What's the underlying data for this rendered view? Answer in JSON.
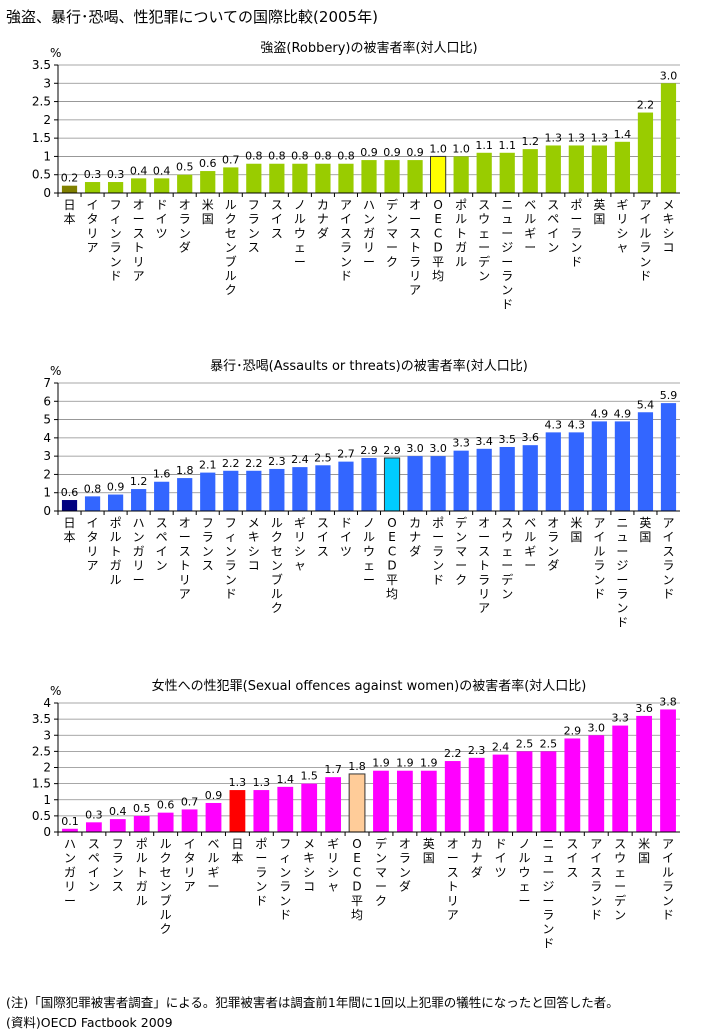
{
  "page": {
    "title": "強盗、暴行･恐喝、性犯罪についての国際比較(2005年)",
    "note": "(注)「国際犯罪被害者調査」による。犯罪被害者は調査前1年間に1回以上犯罪の犠牲になったと回答した者。",
    "source": "(資料)OECD Factbook 2009"
  },
  "colors": {
    "robbery": {
      "bar": "#99CC00",
      "japan": "#808000",
      "oecd": "#FFFF00"
    },
    "assault": {
      "bar": "#3366FF",
      "japan": "#000080",
      "oecd": "#00CCFF"
    },
    "sexual": {
      "bar": "#FF00FF",
      "japan": "#FF0000",
      "oecd": "#FFCC99"
    }
  },
  "chart_data": [
    {
      "type": "bar",
      "title": "強盗(Robbery)の被害者率(対人口比)",
      "ylabel": "%",
      "ylim": [
        0,
        3.5
      ],
      "yticks": [
        "0",
        "0.5",
        "1",
        "1.5",
        "2",
        "2.5",
        "3",
        "3.5"
      ],
      "categories": [
        "日本",
        "イタリア",
        "フィンランド",
        "オーストリア",
        "ドイツ",
        "オランダ",
        "米国",
        "ルクセンブルク",
        "フランス",
        "スイス",
        "ノルウェー",
        "カナダ",
        "アイスランド",
        "ハンガリー",
        "デンマーク",
        "オーストラリア",
        "OECD平均",
        "ポルトガル",
        "スウェーデン",
        "ニュージーランド",
        "ベルギー",
        "スペイン",
        "ポーランド",
        "英国",
        "ギリシャ",
        "アイルランド",
        "メキシコ"
      ],
      "values": [
        0.2,
        0.3,
        0.3,
        0.4,
        0.4,
        0.5,
        0.6,
        0.7,
        0.8,
        0.8,
        0.8,
        0.8,
        0.8,
        0.9,
        0.9,
        0.9,
        1.0,
        1.0,
        1.1,
        1.1,
        1.2,
        1.3,
        1.3,
        1.3,
        1.4,
        2.2,
        3.0
      ],
      "value_labels": [
        "0.2",
        "0.3",
        "0.3",
        "0.4",
        "0.4",
        "0.5",
        "0.6",
        "0.7",
        "0.8",
        "0.8",
        "0.8",
        "0.8",
        "0.8",
        "0.9",
        "0.9",
        "0.9",
        "1.0",
        "1.0",
        "1.1",
        "1.1",
        "1.2",
        "1.3",
        "1.3",
        "1.3",
        "1.4",
        "2.2",
        "3.0"
      ],
      "highlight": {
        "japan": "日本",
        "oecd": "OECD平均"
      }
    },
    {
      "type": "bar",
      "title": "暴行･恐喝(Assaults or threats)の被害者率(対人口比)",
      "ylabel": "%",
      "ylim": [
        0,
        7
      ],
      "yticks": [
        "0",
        "1",
        "2",
        "3",
        "4",
        "5",
        "6",
        "7"
      ],
      "categories": [
        "日本",
        "イタリア",
        "ポルトガル",
        "ハンガリー",
        "スペイン",
        "オーストリア",
        "フランス",
        "フィンランド",
        "メキシコ",
        "ルクセンブルク",
        "ギリシャ",
        "スイス",
        "ドイツ",
        "ノルウェー",
        "OECD平均",
        "カナダ",
        "ポーランド",
        "デンマーク",
        "オーストラリア",
        "スウェーデン",
        "ベルギー",
        "オランダ",
        "米国",
        "アイルランド",
        "ニュージーランド",
        "英国",
        "アイスランド"
      ],
      "values": [
        0.6,
        0.8,
        0.9,
        1.2,
        1.6,
        1.8,
        2.1,
        2.2,
        2.2,
        2.3,
        2.4,
        2.5,
        2.7,
        2.9,
        2.9,
        3.0,
        3.0,
        3.3,
        3.4,
        3.5,
        3.6,
        4.3,
        4.3,
        4.9,
        4.9,
        5.4,
        5.9
      ],
      "value_labels": [
        "0.6",
        "0.8",
        "0.9",
        "1.2",
        "1.6",
        "1.8",
        "2.1",
        "2.2",
        "2.2",
        "2.3",
        "2.4",
        "2.5",
        "2.7",
        "2.9",
        "2.9",
        "3.0",
        "3.0",
        "3.3",
        "3.4",
        "3.5",
        "3.6",
        "4.3",
        "4.3",
        "4.9",
        "4.9",
        "5.4",
        "5.9"
      ],
      "highlight": {
        "japan": "日本",
        "oecd": "OECD平均"
      }
    },
    {
      "type": "bar",
      "title": "女性への性犯罪(Sexual offences against women)の被害者率(対人口比)",
      "ylabel": "%",
      "ylim": [
        0,
        4
      ],
      "yticks": [
        "0",
        "0.5",
        "1",
        "1.5",
        "2",
        "2.5",
        "3",
        "3.5",
        "4"
      ],
      "categories": [
        "ハンガリー",
        "スペイン",
        "フランス",
        "ポルトガル",
        "ルクセンブルク",
        "イタリア",
        "ベルギー",
        "日本",
        "ポーランド",
        "フィンランド",
        "メキシコ",
        "ギリシャ",
        "OECD平均",
        "デンマーク",
        "オランダ",
        "英国",
        "オーストリア",
        "カナダ",
        "ドイツ",
        "ノルウェー",
        "ニュージーランド",
        "スイス",
        "アイスランド",
        "スウェーデン",
        "米国",
        "アイルランド"
      ],
      "values": [
        0.1,
        0.3,
        0.4,
        0.5,
        0.6,
        0.7,
        0.9,
        1.3,
        1.3,
        1.4,
        1.5,
        1.7,
        1.8,
        1.9,
        1.9,
        1.9,
        2.2,
        2.3,
        2.4,
        2.5,
        2.5,
        2.9,
        3.0,
        3.3,
        3.6,
        3.8
      ],
      "value_labels": [
        "0.1",
        "0.3",
        "0.4",
        "0.5",
        "0.6",
        "0.7",
        "0.9",
        "1.3",
        "1.3",
        "1.4",
        "1.5",
        "1.7",
        "1.8",
        "1.9",
        "1.9",
        "1.9",
        "2.2",
        "2.3",
        "2.4",
        "2.5",
        "2.5",
        "2.9",
        "3.0",
        "3.3",
        "3.6",
        "3.8"
      ],
      "highlight": {
        "japan": "日本",
        "oecd": "OECD平均"
      }
    }
  ]
}
